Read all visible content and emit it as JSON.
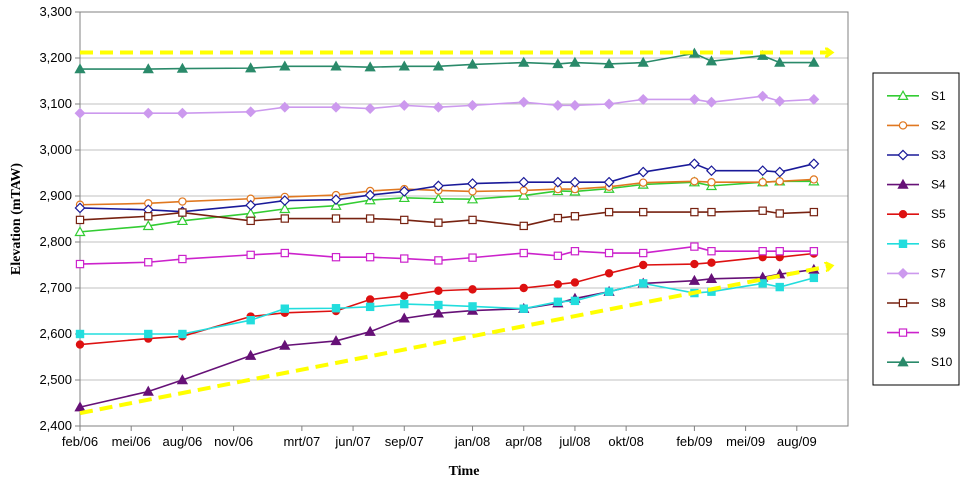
{
  "chart_data": {
    "type": "line",
    "xlabel": "Time",
    "ylabel": "Elevation (mTAW)",
    "ylim": [
      2400,
      3300
    ],
    "y_ticks": [
      2400,
      2500,
      2600,
      2700,
      2800,
      2900,
      3000,
      3100,
      3200,
      3300
    ],
    "y_tick_labels": [
      "2,400",
      "2,500",
      "2,600",
      "2,700",
      "2,800",
      "2,900",
      "3,000",
      "3,100",
      "3,200",
      "3,300"
    ],
    "xlim": [
      "2006-02",
      "2009-11"
    ],
    "x_ticks": [
      "2006-02",
      "2006-05",
      "2006-08",
      "2006-11",
      "2007-03",
      "2007-06",
      "2007-09",
      "2008-01",
      "2008-04",
      "2008-07",
      "2008-10",
      "2009-02",
      "2009-05",
      "2009-08"
    ],
    "x_tick_labels": [
      "feb/06",
      "mei/06",
      "aug/06",
      "nov/06",
      "mrt/07",
      "jun/07",
      "sep/07",
      "jan/08",
      "apr/08",
      "jul/08",
      "okt/08",
      "feb/09",
      "mei/09",
      "aug/09"
    ],
    "grid": "horizontal",
    "legend_position": "right",
    "x": [
      "2006-02",
      "2006-06",
      "2006-08",
      "2006-12",
      "2007-02",
      "2007-05",
      "2007-07",
      "2007-09",
      "2007-11",
      "2008-01",
      "2008-04",
      "2008-06",
      "2008-07",
      "2008-09",
      "2008-11",
      "2009-02",
      "2009-03",
      "2009-06",
      "2009-07",
      "2009-09"
    ],
    "series": [
      {
        "name": "S1",
        "color": "#33cc33",
        "marker": "triangle",
        "filled": false,
        "values": [
          2822,
          2835,
          2846,
          2862,
          2872,
          2879,
          2891,
          2896,
          2894,
          2893,
          2901,
          2911,
          2910,
          2916,
          2925,
          2930,
          2922,
          2930,
          2932,
          2932
        ]
      },
      {
        "name": "S2",
        "color": "#e07820",
        "marker": "circle",
        "filled": false,
        "values": [
          2881,
          2884,
          2888,
          2894,
          2898,
          2902,
          2911,
          2915,
          2912,
          2910,
          2912,
          2915,
          2915,
          2920,
          2929,
          2932,
          2930,
          2930,
          2932,
          2936
        ]
      },
      {
        "name": "S3",
        "color": "#1a1a99",
        "marker": "diamond",
        "filled": false,
        "values": [
          2874,
          2870,
          2866,
          2880,
          2890,
          2892,
          2902,
          2910,
          2922,
          2927,
          2930,
          2930,
          2930,
          2930,
          2952,
          2970,
          2955,
          2955,
          2952,
          2970
        ]
      },
      {
        "name": "S4",
        "color": "#661177",
        "marker": "triangle",
        "filled": true,
        "values": [
          2441,
          2475,
          2500,
          2553,
          2575,
          2585,
          2605,
          2634,
          2645,
          2651,
          2655,
          2667,
          2677,
          2692,
          2710,
          2716,
          2720,
          2723,
          2730,
          2740
        ]
      },
      {
        "name": "S5",
        "color": "#dd1111",
        "marker": "circle",
        "filled": true,
        "values": [
          2577,
          2590,
          2595,
          2638,
          2646,
          2650,
          2675,
          2683,
          2694,
          2697,
          2700,
          2708,
          2712,
          2732,
          2750,
          2752,
          2755,
          2767,
          2767,
          2775
        ]
      },
      {
        "name": "S6",
        "color": "#22dddd",
        "marker": "square",
        "filled": true,
        "values": [
          2600,
          2600,
          2600,
          2630,
          2655,
          2656,
          2659,
          2665,
          2663,
          2660,
          2655,
          2670,
          2672,
          2692,
          2710,
          2689,
          2692,
          2710,
          2702,
          2722
        ]
      },
      {
        "name": "S7",
        "color": "#cc99ee",
        "marker": "diamond",
        "filled": true,
        "values": [
          3080,
          3080,
          3080,
          3083,
          3093,
          3093,
          3090,
          3097,
          3093,
          3097,
          3104,
          3097,
          3097,
          3100,
          3110,
          3110,
          3104,
          3117,
          3106,
          3110
        ]
      },
      {
        "name": "S8",
        "color": "#772211",
        "marker": "square",
        "filled": false,
        "values": [
          2848,
          2856,
          2864,
          2846,
          2851,
          2851,
          2851,
          2848,
          2842,
          2848,
          2835,
          2852,
          2856,
          2865,
          2865,
          2865,
          2865,
          2868,
          2862,
          2865
        ]
      },
      {
        "name": "S9",
        "color": "#cc22cc",
        "marker": "square",
        "filled": false,
        "values": [
          2752,
          2756,
          2763,
          2772,
          2776,
          2767,
          2767,
          2764,
          2760,
          2766,
          2776,
          2770,
          2780,
          2776,
          2776,
          2790,
          2780,
          2780,
          2780,
          2780
        ]
      },
      {
        "name": "S10",
        "color": "#2a8a6a",
        "marker": "triangle",
        "filled": true,
        "values": [
          3176,
          3176,
          3177,
          3178,
          3182,
          3182,
          3180,
          3182,
          3182,
          3186,
          3190,
          3187,
          3190,
          3187,
          3190,
          3210,
          3193,
          3205,
          3190,
          3190
        ]
      }
    ],
    "annotations": [
      {
        "kind": "dashed-arrow",
        "color": "#ffff00",
        "from": {
          "x": "2006-02",
          "y": 3212
        },
        "to": {
          "x": "2009-10",
          "y": 3212
        }
      },
      {
        "kind": "dashed-arrow",
        "color": "#ffff00",
        "from": {
          "x": "2006-02",
          "y": 2428
        },
        "to": {
          "x": "2009-10",
          "y": 2748
        }
      }
    ]
  }
}
